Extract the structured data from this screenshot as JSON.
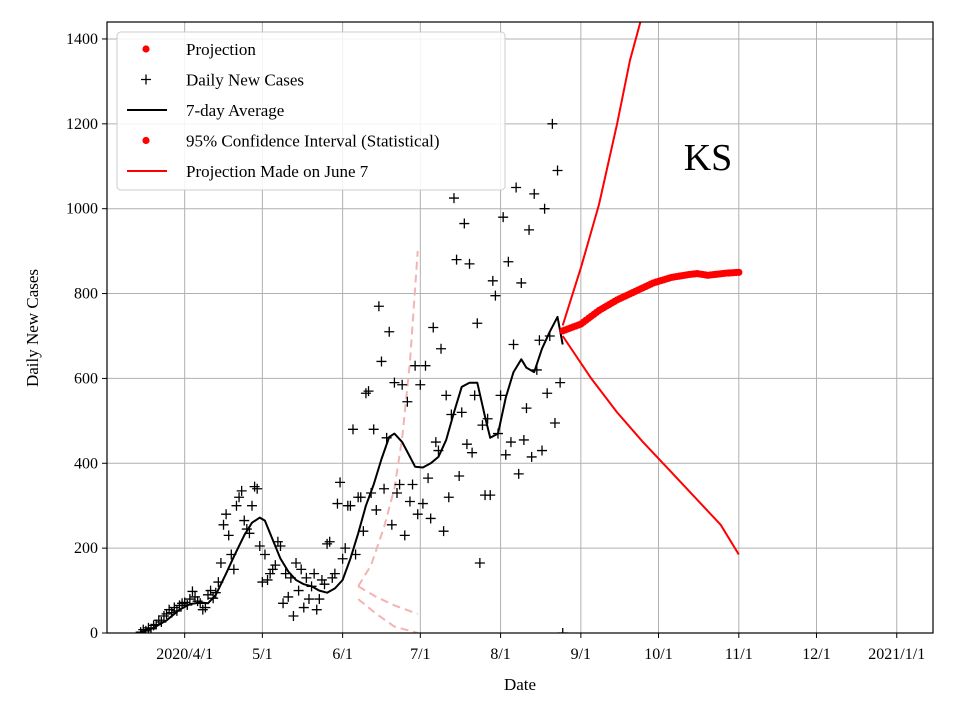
{
  "chart_data": {
    "type": "line",
    "title": "",
    "xlabel": "Date",
    "ylabel": "Daily New Cases",
    "annotation": "KS",
    "grid": true,
    "legend_position": "top-left",
    "x_ticks": [
      "2020/4/1",
      "5/1",
      "6/1",
      "7/1",
      "8/1",
      "9/1",
      "10/1",
      "11/1",
      "12/1",
      "2021/1/1"
    ],
    "x_tick_dates": [
      "2020-04-01",
      "2020-05-01",
      "2020-06-01",
      "2020-07-01",
      "2020-08-01",
      "2020-09-01",
      "2020-10-01",
      "2020-11-01",
      "2020-12-01",
      "2021-01-01"
    ],
    "xlim": [
      "2020-03-02",
      "2021-01-15"
    ],
    "ylim": [
      0,
      1440
    ],
    "y_ticks": [
      0,
      200,
      400,
      600,
      800,
      1000,
      1200,
      1400
    ],
    "legend": [
      {
        "label": "Projection",
        "marker": "dot",
        "color": "#ff0000"
      },
      {
        "label": "Daily New Cases",
        "marker": "plus",
        "color": "#000000"
      },
      {
        "label": "7-day Average",
        "marker": "line",
        "color": "#000000"
      },
      {
        "label": "95% Confidence Interval (Statistical)",
        "marker": "dot",
        "color": "#ff0000"
      },
      {
        "label": "Projection Made on June 7",
        "marker": "line",
        "color": "#ff0000"
      }
    ],
    "series": [
      {
        "name": "Daily New Cases",
        "style": "plus",
        "color": "#000000",
        "points": [
          [
            "2020-03-15",
            2
          ],
          [
            "2020-03-16",
            8
          ],
          [
            "2020-03-17",
            5
          ],
          [
            "2020-03-18",
            12
          ],
          [
            "2020-03-19",
            10
          ],
          [
            "2020-03-20",
            18
          ],
          [
            "2020-03-21",
            20
          ],
          [
            "2020-03-22",
            30
          ],
          [
            "2020-03-23",
            26
          ],
          [
            "2020-03-24",
            40
          ],
          [
            "2020-03-25",
            45
          ],
          [
            "2020-03-26",
            55
          ],
          [
            "2020-03-27",
            48
          ],
          [
            "2020-03-28",
            60
          ],
          [
            "2020-03-29",
            52
          ],
          [
            "2020-03-30",
            65
          ],
          [
            "2020-03-31",
            70
          ],
          [
            "2020-04-01",
            72
          ],
          [
            "2020-04-02",
            66
          ],
          [
            "2020-04-03",
            80
          ],
          [
            "2020-04-04",
            98
          ],
          [
            "2020-04-05",
            85
          ],
          [
            "2020-04-06",
            75
          ],
          [
            "2020-04-07",
            70
          ],
          [
            "2020-04-08",
            55
          ],
          [
            "2020-04-09",
            60
          ],
          [
            "2020-04-10",
            90
          ],
          [
            "2020-04-11",
            100
          ],
          [
            "2020-04-12",
            82
          ],
          [
            "2020-04-13",
            95
          ],
          [
            "2020-04-14",
            120
          ],
          [
            "2020-04-15",
            165
          ],
          [
            "2020-04-16",
            255
          ],
          [
            "2020-04-17",
            280
          ],
          [
            "2020-04-18",
            230
          ],
          [
            "2020-04-19",
            185
          ],
          [
            "2020-04-20",
            150
          ],
          [
            "2020-04-21",
            300
          ],
          [
            "2020-04-22",
            320
          ],
          [
            "2020-04-23",
            335
          ],
          [
            "2020-04-24",
            265
          ],
          [
            "2020-04-25",
            245
          ],
          [
            "2020-04-26",
            235
          ],
          [
            "2020-04-27",
            300
          ],
          [
            "2020-04-28",
            345
          ],
          [
            "2020-04-29",
            340
          ],
          [
            "2020-04-30",
            205
          ],
          [
            "2020-05-01",
            120
          ],
          [
            "2020-05-02",
            185
          ],
          [
            "2020-05-03",
            125
          ],
          [
            "2020-05-04",
            140
          ],
          [
            "2020-05-05",
            150
          ],
          [
            "2020-05-06",
            160
          ],
          [
            "2020-05-07",
            215
          ],
          [
            "2020-05-08",
            205
          ],
          [
            "2020-05-09",
            70
          ],
          [
            "2020-05-10",
            140
          ],
          [
            "2020-05-11",
            85
          ],
          [
            "2020-05-12",
            130
          ],
          [
            "2020-05-13",
            40
          ],
          [
            "2020-05-14",
            165
          ],
          [
            "2020-05-15",
            100
          ],
          [
            "2020-05-16",
            150
          ],
          [
            "2020-05-17",
            60
          ],
          [
            "2020-05-18",
            130
          ],
          [
            "2020-05-19",
            80
          ],
          [
            "2020-05-20",
            110
          ],
          [
            "2020-05-21",
            140
          ],
          [
            "2020-05-22",
            55
          ],
          [
            "2020-05-23",
            80
          ],
          [
            "2020-05-24",
            125
          ],
          [
            "2020-05-25",
            115
          ],
          [
            "2020-05-26",
            210
          ],
          [
            "2020-05-27",
            215
          ],
          [
            "2020-05-28",
            130
          ],
          [
            "2020-05-29",
            140
          ],
          [
            "2020-05-30",
            305
          ],
          [
            "2020-05-31",
            355
          ],
          [
            "2020-06-01",
            175
          ],
          [
            "2020-06-02",
            200
          ],
          [
            "2020-06-03",
            300
          ],
          [
            "2020-06-04",
            300
          ],
          [
            "2020-06-05",
            480
          ],
          [
            "2020-06-06",
            185
          ],
          [
            "2020-06-07",
            320
          ],
          [
            "2020-06-08",
            320
          ],
          [
            "2020-06-09",
            240
          ],
          [
            "2020-06-10",
            565
          ],
          [
            "2020-06-11",
            570
          ],
          [
            "2020-06-12",
            330
          ],
          [
            "2020-06-13",
            480
          ],
          [
            "2020-06-14",
            290
          ],
          [
            "2020-06-15",
            770
          ],
          [
            "2020-06-16",
            640
          ],
          [
            "2020-06-17",
            340
          ],
          [
            "2020-06-18",
            460
          ],
          [
            "2020-06-19",
            710
          ],
          [
            "2020-06-20",
            255
          ],
          [
            "2020-06-21",
            590
          ],
          [
            "2020-06-22",
            330
          ],
          [
            "2020-06-23",
            350
          ],
          [
            "2020-06-24",
            585
          ],
          [
            "2020-06-25",
            230
          ],
          [
            "2020-06-26",
            545
          ],
          [
            "2020-06-27",
            310
          ],
          [
            "2020-06-28",
            350
          ],
          [
            "2020-06-29",
            630
          ],
          [
            "2020-06-30",
            280
          ],
          [
            "2020-07-01",
            585
          ],
          [
            "2020-07-02",
            305
          ],
          [
            "2020-07-03",
            630
          ],
          [
            "2020-07-04",
            365
          ],
          [
            "2020-07-05",
            270
          ],
          [
            "2020-07-06",
            720
          ],
          [
            "2020-07-07",
            450
          ],
          [
            "2020-07-08",
            430
          ],
          [
            "2020-07-09",
            670
          ],
          [
            "2020-07-10",
            240
          ],
          [
            "2020-07-11",
            560
          ],
          [
            "2020-07-12",
            320
          ],
          [
            "2020-07-13",
            515
          ],
          [
            "2020-07-14",
            1025
          ],
          [
            "2020-07-15",
            880
          ],
          [
            "2020-07-16",
            370
          ],
          [
            "2020-07-17",
            520
          ],
          [
            "2020-07-18",
            965
          ],
          [
            "2020-07-19",
            445
          ],
          [
            "2020-07-20",
            870
          ],
          [
            "2020-07-21",
            425
          ],
          [
            "2020-07-22",
            560
          ],
          [
            "2020-07-23",
            730
          ],
          [
            "2020-07-24",
            165
          ],
          [
            "2020-07-25",
            490
          ],
          [
            "2020-07-26",
            325
          ],
          [
            "2020-07-27",
            505
          ],
          [
            "2020-07-28",
            325
          ],
          [
            "2020-07-29",
            830
          ],
          [
            "2020-07-30",
            795
          ],
          [
            "2020-07-31",
            470
          ],
          [
            "2020-08-01",
            560
          ],
          [
            "2020-08-02",
            980
          ],
          [
            "2020-08-03",
            420
          ],
          [
            "2020-08-04",
            875
          ],
          [
            "2020-08-05",
            450
          ],
          [
            "2020-08-06",
            680
          ],
          [
            "2020-08-07",
            1050
          ],
          [
            "2020-08-08",
            375
          ],
          [
            "2020-08-09",
            825
          ],
          [
            "2020-08-10",
            455
          ],
          [
            "2020-08-11",
            530
          ],
          [
            "2020-08-12",
            950
          ],
          [
            "2020-08-13",
            415
          ],
          [
            "2020-08-14",
            1035
          ],
          [
            "2020-08-15",
            620
          ],
          [
            "2020-08-16",
            690
          ],
          [
            "2020-08-17",
            430
          ],
          [
            "2020-08-18",
            1000
          ],
          [
            "2020-08-19",
            565
          ],
          [
            "2020-08-20",
            700
          ],
          [
            "2020-08-21",
            1200
          ],
          [
            "2020-08-22",
            495
          ],
          [
            "2020-08-23",
            1090
          ],
          [
            "2020-08-24",
            590
          ],
          [
            "2020-08-25",
            0
          ]
        ]
      },
      {
        "name": "7-day Average",
        "style": "line",
        "color": "#000000",
        "points": [
          [
            "2020-03-15",
            2
          ],
          [
            "2020-03-20",
            12
          ],
          [
            "2020-03-25",
            30
          ],
          [
            "2020-03-30",
            55
          ],
          [
            "2020-04-03",
            68
          ],
          [
            "2020-04-07",
            72
          ],
          [
            "2020-04-10",
            70
          ],
          [
            "2020-04-13",
            90
          ],
          [
            "2020-04-17",
            140
          ],
          [
            "2020-04-20",
            180
          ],
          [
            "2020-04-24",
            230
          ],
          [
            "2020-04-27",
            260
          ],
          [
            "2020-04-30",
            272
          ],
          [
            "2020-05-02",
            265
          ],
          [
            "2020-05-05",
            220
          ],
          [
            "2020-05-08",
            175
          ],
          [
            "2020-05-11",
            145
          ],
          [
            "2020-05-14",
            125
          ],
          [
            "2020-05-17",
            115
          ],
          [
            "2020-05-20",
            110
          ],
          [
            "2020-05-23",
            100
          ],
          [
            "2020-05-26",
            95
          ],
          [
            "2020-05-29",
            105
          ],
          [
            "2020-06-01",
            125
          ],
          [
            "2020-06-04",
            175
          ],
          [
            "2020-06-07",
            235
          ],
          [
            "2020-06-10",
            300
          ],
          [
            "2020-06-13",
            350
          ],
          [
            "2020-06-16",
            410
          ],
          [
            "2020-06-19",
            462
          ],
          [
            "2020-06-21",
            470
          ],
          [
            "2020-06-24",
            450
          ],
          [
            "2020-06-27",
            415
          ],
          [
            "2020-06-29",
            392
          ],
          [
            "2020-07-02",
            390
          ],
          [
            "2020-07-05",
            400
          ],
          [
            "2020-07-08",
            415
          ],
          [
            "2020-07-11",
            455
          ],
          [
            "2020-07-14",
            520
          ],
          [
            "2020-07-17",
            580
          ],
          [
            "2020-07-20",
            590
          ],
          [
            "2020-07-23",
            590
          ],
          [
            "2020-07-26",
            510
          ],
          [
            "2020-07-28",
            460
          ],
          [
            "2020-07-31",
            470
          ],
          [
            "2020-08-03",
            555
          ],
          [
            "2020-08-06",
            615
          ],
          [
            "2020-08-09",
            645
          ],
          [
            "2020-08-11",
            625
          ],
          [
            "2020-08-14",
            615
          ],
          [
            "2020-08-17",
            670
          ],
          [
            "2020-08-20",
            710
          ],
          [
            "2020-08-23",
            745
          ],
          [
            "2020-08-25",
            680
          ]
        ]
      },
      {
        "name": "Projection",
        "style": "dots",
        "color": "#ff0000",
        "points": [
          [
            "2020-08-25",
            712
          ],
          [
            "2020-09-01",
            728
          ],
          [
            "2020-09-08",
            760
          ],
          [
            "2020-09-15",
            785
          ],
          [
            "2020-09-22",
            805
          ],
          [
            "2020-09-29",
            825
          ],
          [
            "2020-10-06",
            838
          ],
          [
            "2020-10-13",
            845
          ],
          [
            "2020-10-16",
            847
          ],
          [
            "2020-10-20",
            843
          ],
          [
            "2020-10-27",
            848
          ],
          [
            "2020-11-01",
            850
          ]
        ]
      },
      {
        "name": "95% Confidence Interval (Statistical)",
        "style": "line",
        "color": "#ff0000",
        "points": [
          [
            "2020-08-25",
            725
          ],
          [
            "2020-09-01",
            860
          ],
          [
            "2020-09-08",
            1010
          ],
          [
            "2020-09-15",
            1200
          ],
          [
            "2020-09-20",
            1350
          ],
          [
            "2020-09-24",
            1440
          ]
        ]
      },
      {
        "name": "95% Confidence Interval (Statistical)",
        "style": "line",
        "color": "#ff0000",
        "points": [
          [
            "2020-08-25",
            700
          ],
          [
            "2020-09-05",
            600
          ],
          [
            "2020-09-15",
            520
          ],
          [
            "2020-09-25",
            450
          ],
          [
            "2020-10-05",
            385
          ],
          [
            "2020-10-15",
            320
          ],
          [
            "2020-10-25",
            255
          ],
          [
            "2020-11-01",
            185
          ]
        ]
      },
      {
        "name": "Projection Made on June 7",
        "style": "dashed",
        "color": "#f4b3b3",
        "points": [
          [
            "2020-06-07",
            110
          ],
          [
            "2020-06-12",
            160
          ],
          [
            "2020-06-17",
            250
          ],
          [
            "2020-06-21",
            340
          ],
          [
            "2020-06-24",
            460
          ],
          [
            "2020-06-27",
            640
          ],
          [
            "2020-06-30",
            900
          ]
        ]
      },
      {
        "name": "Projection Made on June 7",
        "style": "dashed",
        "color": "#f4b3b3",
        "points": [
          [
            "2020-06-07",
            110
          ],
          [
            "2020-06-14",
            85
          ],
          [
            "2020-06-21",
            65
          ],
          [
            "2020-06-30",
            45
          ]
        ]
      },
      {
        "name": "Projection Made on June 7",
        "style": "dashed",
        "color": "#f4b3b3",
        "points": [
          [
            "2020-06-07",
            80
          ],
          [
            "2020-06-14",
            45
          ],
          [
            "2020-06-21",
            15
          ],
          [
            "2020-06-30",
            0
          ]
        ]
      }
    ]
  }
}
